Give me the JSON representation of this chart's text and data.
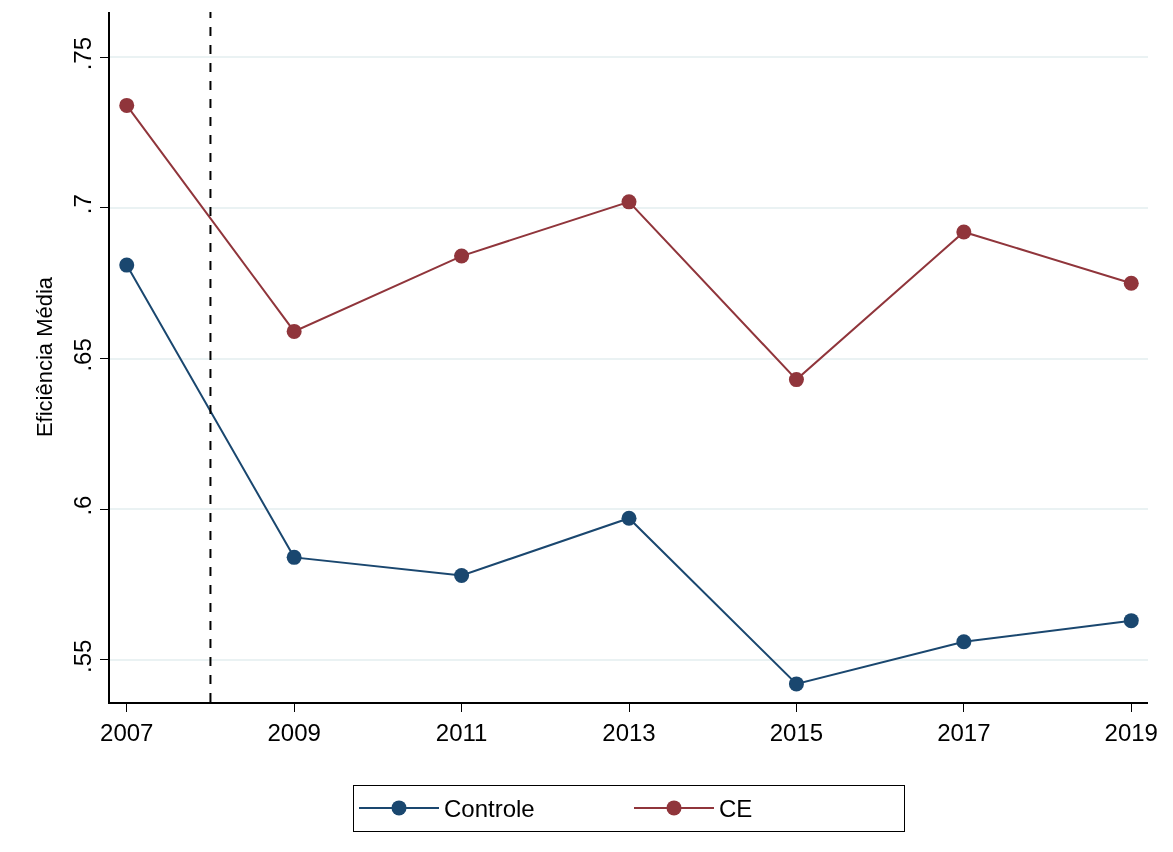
{
  "chart_data": {
    "type": "line",
    "ylabel": "Eficiência Média",
    "x": [
      2007,
      2009,
      2011,
      2013,
      2015,
      2017,
      2019
    ],
    "series": [
      {
        "name": "Controle",
        "color": "#1a476f",
        "values": [
          0.681,
          0.584,
          0.578,
          0.597,
          0.542,
          0.556,
          0.563
        ]
      },
      {
        "name": "CE",
        "color": "#90353b",
        "values": [
          0.734,
          0.659,
          0.684,
          0.702,
          0.643,
          0.692,
          0.675
        ]
      }
    ],
    "xlim": [
      2006.8,
      2019.2
    ],
    "xticks": [
      2007,
      2009,
      2011,
      2013,
      2015,
      2017,
      2019
    ],
    "ylim": [
      0.536,
      0.765
    ],
    "yticks": [
      {
        "value": 0.55,
        "label": ".55"
      },
      {
        "value": 0.6,
        "label": ".6"
      },
      {
        "value": 0.65,
        "label": ".65"
      },
      {
        "value": 0.7,
        "label": ".7"
      },
      {
        "value": 0.75,
        "label": ".75"
      }
    ],
    "ref_lines": [
      {
        "axis": "x",
        "value": 2008,
        "color": "#000000",
        "line_style": "dashed"
      }
    ],
    "grid": "y",
    "legend": "bottom",
    "marker": "circle",
    "line_style": "solid"
  }
}
